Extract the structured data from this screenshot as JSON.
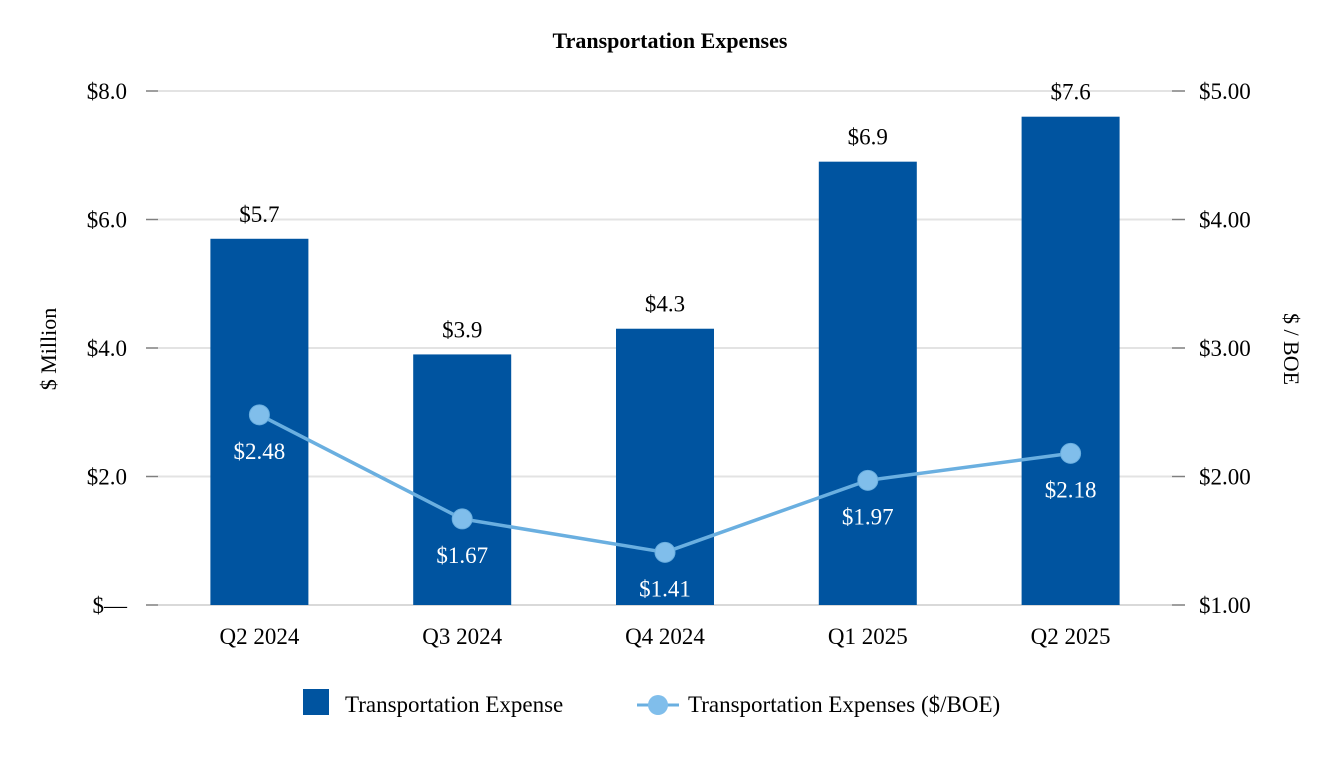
{
  "chart_data": {
    "type": "bar",
    "title": "Transportation Expenses",
    "categories": [
      "Q2 2024",
      "Q3 2024",
      "Q4 2024",
      "Q1 2025",
      "Q2 2025"
    ],
    "series": [
      {
        "name": "Transportation Expense",
        "type": "bar",
        "axis": "left",
        "color": "#0054A0",
        "values": [
          5.7,
          3.9,
          4.3,
          6.9,
          7.6
        ],
        "labels": [
          "$5.7",
          "$3.9",
          "$4.3",
          "$6.9",
          "$7.6"
        ]
      },
      {
        "name": "Transportation Expenses ($/BOE)",
        "type": "line",
        "axis": "right",
        "color": "#6AAFE0",
        "marker_color": "#80BEEB",
        "values": [
          2.48,
          1.67,
          1.41,
          1.97,
          2.18
        ],
        "labels": [
          "$2.48",
          "$1.67",
          "$1.41",
          "$1.97",
          "$2.18"
        ]
      }
    ],
    "ylabel": "$ Million",
    "y2label": "$ / BOE",
    "xlabel": "",
    "ylim": [
      0,
      8
    ],
    "y2lim": [
      1,
      5
    ],
    "yticks": [
      {
        "value": 0,
        "label": "$—"
      },
      {
        "value": 2,
        "label": "$2.0"
      },
      {
        "value": 4,
        "label": "$4.0"
      },
      {
        "value": 6,
        "label": "$6.0"
      },
      {
        "value": 8,
        "label": "$8.0"
      }
    ],
    "y2ticks": [
      {
        "value": 1,
        "label": "$1.00"
      },
      {
        "value": 2,
        "label": "$2.00"
      },
      {
        "value": 3,
        "label": "$3.00"
      },
      {
        "value": 4,
        "label": "$4.00"
      },
      {
        "value": 5,
        "label": "$5.00"
      }
    ],
    "grid": true,
    "legend": "bottom-center",
    "gridline_color": "#E3E3E3",
    "tick_color": "#7F7F7F"
  }
}
